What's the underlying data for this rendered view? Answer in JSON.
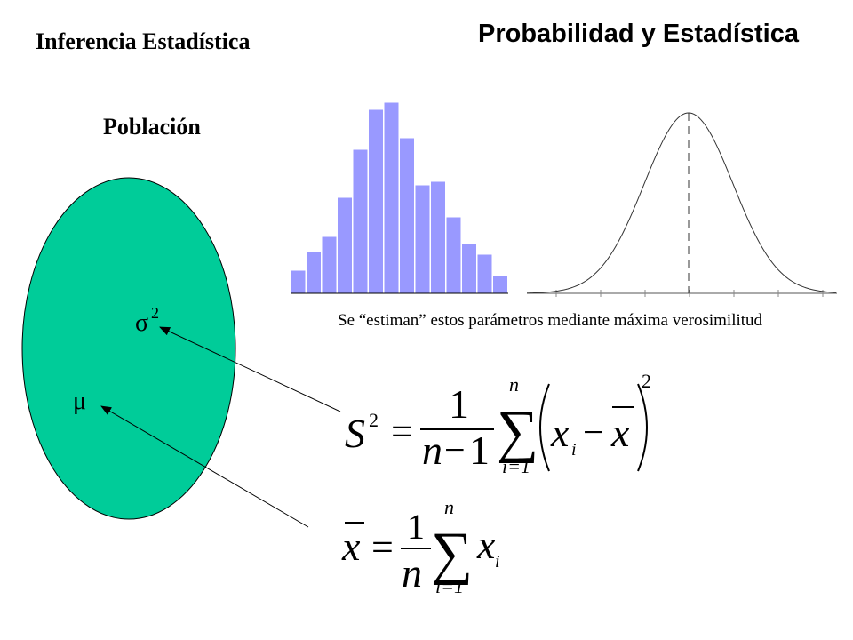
{
  "header": {
    "course_title": "Probabilidad y Estadística",
    "topic_title": "Inferencia Estadística"
  },
  "population": {
    "label": "Población",
    "fill_color": "#00cc99",
    "params": {
      "variance": "σ",
      "variance_exp": "2",
      "mean": "μ"
    }
  },
  "histogram": {
    "bar_color": "#9999ff",
    "values": [
      26,
      47,
      64,
      108,
      162,
      207,
      215,
      175,
      122,
      126,
      86,
      56,
      44,
      20
    ]
  },
  "note": {
    "text": "Se “estiman” estos parámetros mediante máxima verosimilitud"
  },
  "formula_variance": {
    "lhs": "S",
    "lhs_exp": "2",
    "eq": "=",
    "num": "1",
    "den_n": "n",
    "den_minus": "−",
    "den_one": "1",
    "sum_top": "n",
    "sum": "∑",
    "sum_bottom": "i=1",
    "x": "x",
    "sub_i": "i",
    "minus": "−",
    "xbar": "x",
    "exp": "2"
  },
  "formula_mean": {
    "lhs": "x",
    "eq": "=",
    "num": "1",
    "den": "n",
    "sum_top": "n",
    "sum": "∑",
    "sum_bottom": "i=1",
    "x": "x",
    "sub_i": "i"
  }
}
